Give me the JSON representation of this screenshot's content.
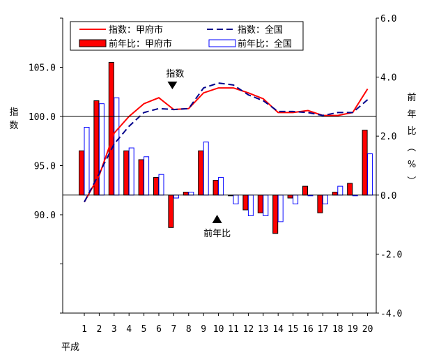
{
  "chart_data": {
    "type": "bar+line",
    "categories": [
      "1",
      "2",
      "3",
      "4",
      "5",
      "6",
      "7",
      "8",
      "9",
      "10",
      "11",
      "12",
      "13",
      "14",
      "15",
      "16",
      "17",
      "18",
      "19",
      "20"
    ],
    "x_era_label": "平成",
    "left_axis": {
      "label": "指数",
      "ylim": [
        80.0,
        110.0
      ],
      "tick_labels": [
        "105.0",
        "100.0",
        "95.0",
        "90.0"
      ],
      "tick_values": [
        105.0,
        100.0,
        95.0,
        90.0
      ]
    },
    "right_axis": {
      "label": "前年比（%）",
      "ylim": [
        -4.0,
        6.0
      ],
      "tick_labels": [
        "6.0",
        "4.0",
        "2.0",
        "0.0",
        "-2.0",
        "-4.0"
      ],
      "tick_values": [
        6.0,
        4.0,
        2.0,
        0.0,
        -2.0,
        -4.0
      ]
    },
    "line_series": [
      {
        "name": "指数：甲府市",
        "color": "#ff0000",
        "style": "solid",
        "axis": "left",
        "values": [
          91.3,
          94.0,
          98.3,
          100.0,
          101.3,
          101.9,
          100.7,
          100.8,
          102.4,
          102.9,
          102.9,
          102.4,
          101.8,
          100.4,
          100.4,
          100.6,
          100.1,
          100.1,
          100.4,
          102.8
        ]
      },
      {
        "name": "指数：全国",
        "color": "#00008b",
        "style": "dashed",
        "axis": "left",
        "values": [
          91.3,
          94.2,
          97.2,
          99.0,
          100.4,
          100.8,
          100.7,
          100.8,
          102.9,
          103.4,
          103.2,
          102.2,
          101.6,
          100.5,
          100.5,
          100.4,
          100.1,
          100.4,
          100.4,
          101.7
        ]
      }
    ],
    "bar_series": [
      {
        "name": "前年比：甲府市",
        "fill": "#ff0000",
        "stroke": "#000000",
        "axis": "right",
        "values": [
          1.5,
          3.2,
          4.5,
          1.5,
          1.2,
          0.6,
          -1.1,
          0.1,
          1.5,
          0.5,
          0.0,
          -0.5,
          -0.6,
          -1.3,
          -0.1,
          0.3,
          -0.6,
          0.1,
          0.4,
          2.2
        ]
      },
      {
        "name": "前年比：全国",
        "fill": "#ffffff",
        "stroke": "#0000ff",
        "axis": "right",
        "values": [
          2.3,
          3.1,
          3.3,
          1.6,
          1.3,
          0.7,
          -0.1,
          0.1,
          1.8,
          0.6,
          -0.3,
          -0.7,
          -0.7,
          -0.9,
          -0.3,
          0.0,
          -0.3,
          0.3,
          0.0,
          1.4
        ]
      }
    ],
    "annotations": [
      {
        "text": "指数",
        "arrow": "down",
        "category": "7"
      },
      {
        "text": "前年比",
        "arrow": "up",
        "category": "10"
      }
    ],
    "legend": {
      "placement": "top-left",
      "entries": [
        "指数：甲府市",
        "指数：全国",
        "前年比：甲府市",
        "前年比：全国"
      ]
    },
    "grid": false
  }
}
